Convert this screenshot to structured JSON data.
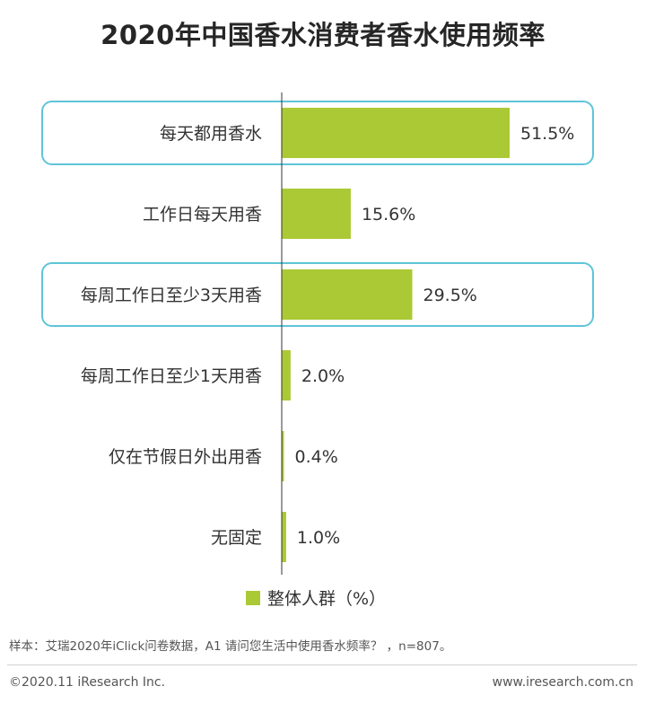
{
  "colors": {
    "bar": "#abc935",
    "highlight_border": "#5fc4d8",
    "axis": "#333333"
  },
  "chart_data": {
    "type": "bar",
    "orientation": "horizontal",
    "title": "2020年中国香水消费者香水使用频率",
    "categories": [
      "每天都用香水",
      "工作日每天用香",
      "每周工作日至少3天用香",
      "每周工作日至少1天用香",
      "仅在节假日外出用香",
      "无固定"
    ],
    "series": [
      {
        "name": "整体人群（%）",
        "values": [
          51.5,
          15.6,
          29.5,
          2.0,
          0.4,
          1.0
        ]
      }
    ],
    "value_labels": [
      "51.5%",
      "15.6%",
      "29.5%",
      "2.0%",
      "0.4%",
      "1.0%"
    ],
    "highlighted": [
      "每天都用香水",
      "每周工作日至少3天用香"
    ],
    "xlim": [
      0,
      60
    ],
    "legend_position": "bottom",
    "grid": false
  },
  "footer": {
    "source": "样本：艾瑞2020年iClick问卷数据，A1 请问您生活中使用香水频率？ ，n=807。",
    "copyright": "©2020.11 iResearch Inc.",
    "site": "www.iresearch.com.cn"
  }
}
